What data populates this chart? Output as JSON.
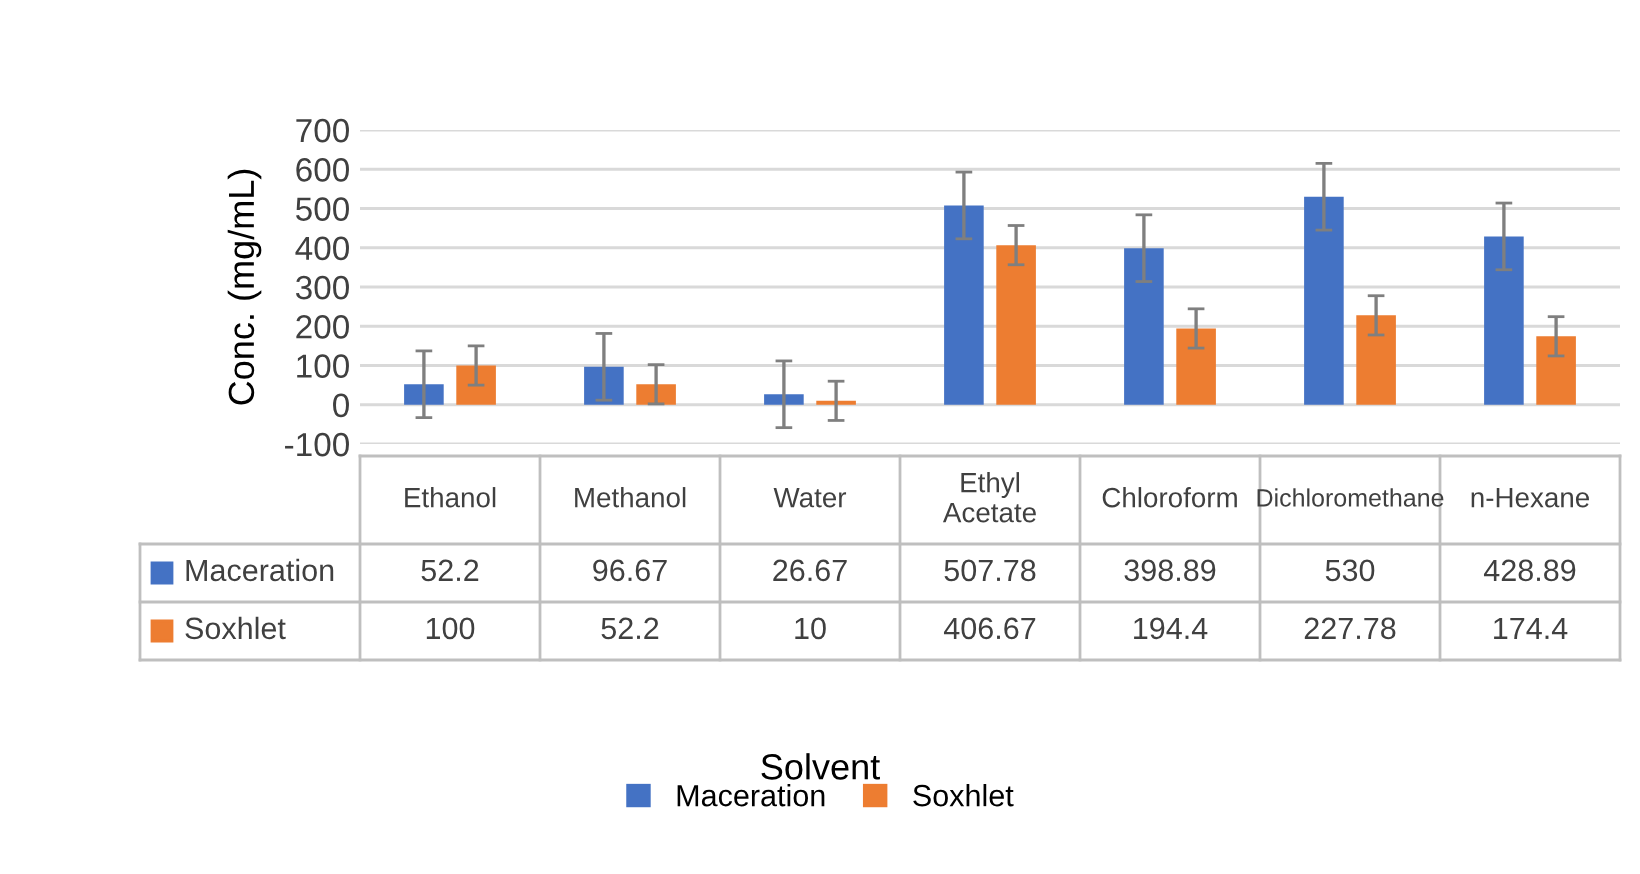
{
  "chart_data": {
    "type": "bar",
    "annotations": [
      "Solvent"
    ],
    "ylabel": "Conc. (mg/mL)",
    "categories": [
      "Ethanol",
      "Methanol",
      "Water",
      "Ethyl Acetate",
      "Chloroform",
      "Dichloromethane",
      "n-Hexane"
    ],
    "series": [
      {
        "name": "Maceration",
        "color": "#4472c4",
        "values": [
          52.2,
          96.67,
          26.67,
          507.78,
          398.89,
          530,
          428.89
        ],
        "errors": [
          85,
          85,
          85,
          85,
          85,
          85,
          85
        ]
      },
      {
        "name": "Soxhlet",
        "color": "#ed7d31",
        "values": [
          100,
          52.2,
          10,
          406.67,
          194.4,
          227.78,
          174.4
        ],
        "errors": [
          50,
          50,
          50,
          50,
          50,
          50,
          50
        ]
      }
    ],
    "ylim": [
      -100,
      700
    ],
    "yticks": [
      -100,
      0,
      100,
      200,
      300,
      400,
      500,
      600,
      700
    ],
    "grid": "y",
    "legend": "bottom",
    "data_labels": true
  }
}
